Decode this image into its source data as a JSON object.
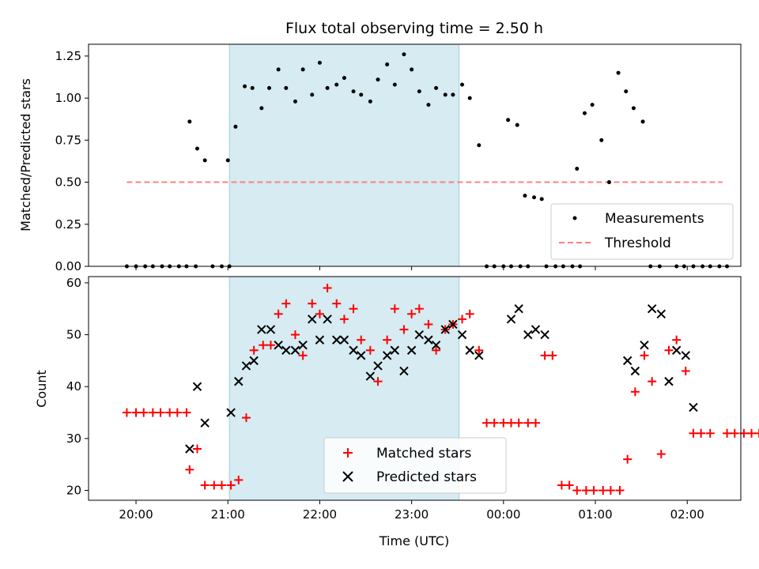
{
  "title": "Flux total observing time = 2.50 h",
  "xlabel": "Time (UTC)",
  "chart_data": [
    {
      "type": "scatter",
      "ylabel": "Matched/Predicted stars",
      "ylim": [
        0,
        1.32
      ],
      "yticks": [
        0,
        0.25,
        0.5,
        0.75,
        1.0,
        1.25
      ],
      "ytick_labels": [
        "0.00",
        "0.25",
        "0.50",
        "0.75",
        "1.00",
        "1.25"
      ],
      "shaded_interval": [
        "21:01",
        "23:31"
      ],
      "threshold": {
        "name": "Threshold",
        "value": 0.5,
        "x_range": [
          "19:54",
          "02:23"
        ],
        "color": "#ff7f7f"
      },
      "series": [
        {
          "name": "Measurements",
          "marker": "dot",
          "color": "#000000",
          "points": [
            [
              "19:54",
              0
            ],
            [
              "20:00",
              0
            ],
            [
              "20:06",
              0
            ],
            [
              "20:11",
              0
            ],
            [
              "20:17",
              0
            ],
            [
              "20:22",
              0
            ],
            [
              "20:28",
              0
            ],
            [
              "20:33",
              0
            ],
            [
              "20:39",
              0
            ],
            [
              "20:35",
              0.86
            ],
            [
              "20:40",
              0.7
            ],
            [
              "20:45",
              0.63
            ],
            [
              "20:50",
              0
            ],
            [
              "20:56",
              0
            ],
            [
              "21:01",
              0
            ],
            [
              "21:00",
              0.63
            ],
            [
              "21:05",
              0.83
            ],
            [
              "21:11",
              1.07
            ],
            [
              "21:16",
              1.06
            ],
            [
              "21:22",
              0.94
            ],
            [
              "21:27",
              1.06
            ],
            [
              "21:33",
              1.17
            ],
            [
              "21:38",
              1.06
            ],
            [
              "21:44",
              0.98
            ],
            [
              "21:49",
              1.17
            ],
            [
              "21:55",
              1.02
            ],
            [
              "22:00",
              1.21
            ],
            [
              "22:05",
              1.06
            ],
            [
              "22:11",
              1.08
            ],
            [
              "22:16",
              1.12
            ],
            [
              "22:22",
              1.04
            ],
            [
              "22:27",
              1.02
            ],
            [
              "22:33",
              0.98
            ],
            [
              "22:38",
              1.11
            ],
            [
              "22:44",
              1.2
            ],
            [
              "22:49",
              1.08
            ],
            [
              "22:55",
              1.26
            ],
            [
              "23:00",
              1.17
            ],
            [
              "23:05",
              1.04
            ],
            [
              "23:11",
              0.96
            ],
            [
              "23:16",
              1.06
            ],
            [
              "23:22",
              1.02
            ],
            [
              "23:27",
              1.02
            ],
            [
              "23:33",
              1.08
            ],
            [
              "23:38",
              1.0
            ],
            [
              "23:44",
              0.72
            ],
            [
              "23:49",
              0
            ],
            [
              "23:54",
              0
            ],
            [
              "00:00",
              0
            ],
            [
              "00:05",
              0
            ],
            [
              "00:11",
              0
            ],
            [
              "00:16",
              0
            ],
            [
              "00:03",
              0.87
            ],
            [
              "00:09",
              0.84
            ],
            [
              "00:14",
              0.42
            ],
            [
              "00:20",
              0.41
            ],
            [
              "00:25",
              0.4
            ],
            [
              "00:28",
              0
            ],
            [
              "00:34",
              0
            ],
            [
              "00:39",
              0
            ],
            [
              "00:45",
              0
            ],
            [
              "00:50",
              0
            ],
            [
              "00:48",
              0.58
            ],
            [
              "00:53",
              0.91
            ],
            [
              "00:58",
              0.96
            ],
            [
              "01:04",
              0.75
            ],
            [
              "01:09",
              0.5
            ],
            [
              "01:15",
              1.15
            ],
            [
              "01:20",
              1.04
            ],
            [
              "01:25",
              0.94
            ],
            [
              "01:31",
              0.86
            ],
            [
              "01:36",
              0
            ],
            [
              "01:42",
              0
            ],
            [
              "01:53",
              0
            ],
            [
              "01:58",
              0
            ],
            [
              "02:04",
              0
            ],
            [
              "02:10",
              0
            ],
            [
              "02:15",
              0
            ],
            [
              "02:21",
              0
            ],
            [
              "02:26",
              0
            ]
          ]
        }
      ]
    },
    {
      "type": "scatter",
      "ylabel": "Count",
      "ylim": [
        18.1,
        61.2
      ],
      "yticks": [
        20,
        30,
        40,
        50,
        60
      ],
      "ytick_labels": [
        "20",
        "30",
        "40",
        "50",
        "60"
      ],
      "shaded_interval": [
        "21:01",
        "23:31"
      ],
      "series": [
        {
          "name": "Matched stars",
          "marker": "plus",
          "color": "#ff0000",
          "points": [
            [
              "19:54",
              35
            ],
            [
              "20:00",
              35
            ],
            [
              "20:05",
              35
            ],
            [
              "20:11",
              35
            ],
            [
              "20:16",
              35
            ],
            [
              "20:22",
              35
            ],
            [
              "20:27",
              35
            ],
            [
              "20:33",
              35
            ],
            [
              "20:35",
              24
            ],
            [
              "20:40",
              28
            ],
            [
              "20:45",
              21
            ],
            [
              "20:51",
              21
            ],
            [
              "20:56",
              21
            ],
            [
              "21:02",
              21
            ],
            [
              "21:07",
              22
            ],
            [
              "21:12",
              34
            ],
            [
              "21:17",
              47
            ],
            [
              "21:23",
              48
            ],
            [
              "21:28",
              48
            ],
            [
              "21:33",
              54
            ],
            [
              "21:38",
              56
            ],
            [
              "21:44",
              50
            ],
            [
              "21:49",
              46
            ],
            [
              "21:55",
              56
            ],
            [
              "22:00",
              54
            ],
            [
              "22:05",
              59
            ],
            [
              "22:11",
              56
            ],
            [
              "22:16",
              53
            ],
            [
              "22:22",
              55
            ],
            [
              "22:27",
              49
            ],
            [
              "22:33",
              47
            ],
            [
              "22:38",
              41
            ],
            [
              "22:44",
              49
            ],
            [
              "22:49",
              55
            ],
            [
              "22:55",
              51
            ],
            [
              "23:00",
              54
            ],
            [
              "23:05",
              55
            ],
            [
              "23:11",
              52
            ],
            [
              "23:16",
              47
            ],
            [
              "23:22",
              51
            ],
            [
              "23:27",
              52
            ],
            [
              "23:33",
              53
            ],
            [
              "23:38",
              54
            ],
            [
              "23:44",
              47
            ],
            [
              "23:49",
              33
            ],
            [
              "23:54",
              33
            ],
            [
              "24:00",
              33
            ],
            [
              "24:05",
              33
            ],
            [
              "24:10",
              33
            ],
            [
              "24:16",
              33
            ],
            [
              "24:21",
              33
            ],
            [
              "24:27",
              46
            ],
            [
              "24:32",
              46
            ],
            [
              "24:38",
              21
            ],
            [
              "24:43",
              21
            ],
            [
              "24:48",
              20
            ],
            [
              "24:54",
              20
            ],
            [
              "24:59",
              20
            ],
            [
              "25:05",
              20
            ],
            [
              "25:10",
              20
            ],
            [
              "25:16",
              20
            ],
            [
              "25:21",
              26
            ],
            [
              "25:26",
              39
            ],
            [
              "25:32",
              46
            ],
            [
              "25:37",
              41
            ],
            [
              "25:43",
              27
            ],
            [
              "25:48",
              47
            ],
            [
              "25:53",
              49
            ],
            [
              "25:59",
              43
            ],
            [
              "26:04",
              31
            ],
            [
              "26:09",
              31
            ],
            [
              "26:15",
              31
            ],
            [
              "26:26",
              31
            ],
            [
              "26:31",
              31
            ],
            [
              "26:37",
              31
            ],
            [
              "26:42",
              31
            ],
            [
              "26:47",
              31
            ],
            [
              "26:53",
              31
            ]
          ]
        },
        {
          "name": "Predicted stars",
          "marker": "x",
          "color": "#000000",
          "points": [
            [
              "20:35",
              28
            ],
            [
              "20:40",
              40
            ],
            [
              "20:45",
              33
            ],
            [
              "21:02",
              35
            ],
            [
              "21:07",
              41
            ],
            [
              "21:12",
              44
            ],
            [
              "21:17",
              45
            ],
            [
              "21:22",
              51
            ],
            [
              "21:28",
              51
            ],
            [
              "21:33",
              48
            ],
            [
              "21:38",
              47
            ],
            [
              "21:44",
              47
            ],
            [
              "21:49",
              48
            ],
            [
              "21:55",
              53
            ],
            [
              "22:00",
              49
            ],
            [
              "22:05",
              53
            ],
            [
              "22:11",
              49
            ],
            [
              "22:16",
              49
            ],
            [
              "22:22",
              47
            ],
            [
              "22:27",
              46
            ],
            [
              "22:33",
              42
            ],
            [
              "22:38",
              44
            ],
            [
              "22:44",
              46
            ],
            [
              "22:49",
              47
            ],
            [
              "22:55",
              43
            ],
            [
              "23:00",
              47
            ],
            [
              "23:05",
              50
            ],
            [
              "23:11",
              49
            ],
            [
              "23:16",
              48
            ],
            [
              "23:22",
              51
            ],
            [
              "23:27",
              52
            ],
            [
              "23:33",
              50
            ],
            [
              "23:38",
              47
            ],
            [
              "23:44",
              46
            ],
            [
              "24:05",
              53
            ],
            [
              "24:10",
              55
            ],
            [
              "24:16",
              50
            ],
            [
              "24:21",
              51
            ],
            [
              "24:27",
              50
            ],
            [
              "25:21",
              45
            ],
            [
              "25:26",
              43
            ],
            [
              "25:32",
              48
            ],
            [
              "25:37",
              55
            ],
            [
              "25:43",
              54
            ],
            [
              "25:48",
              41
            ],
            [
              "25:53",
              47
            ],
            [
              "25:59",
              46
            ],
            [
              "26:04",
              36
            ]
          ]
        }
      ]
    }
  ],
  "xaxis": {
    "min": "19:29",
    "max": "02:35",
    "ticks": [
      "20:00",
      "21:00",
      "22:00",
      "23:00",
      "00:00",
      "01:00",
      "02:00"
    ]
  }
}
